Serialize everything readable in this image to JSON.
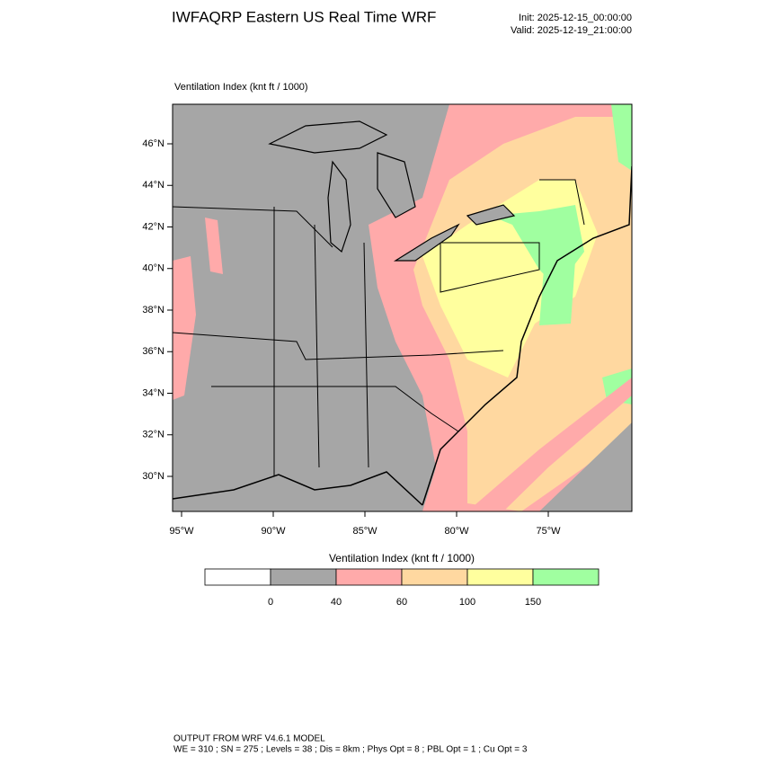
{
  "header": {
    "title": "IWFAQRP Eastern US Real Time WRF",
    "init": "Init: 2025-12-15_00:00:00",
    "valid": "Valid: 2025-12-19_21:00:00"
  },
  "map": {
    "field_label": "Ventilation Index   (knt ft / 1000)",
    "lat_labels": [
      "46°N",
      "44°N",
      "42°N",
      "40°N",
      "38°N",
      "36°N",
      "34°N",
      "32°N",
      "30°N"
    ],
    "lon_labels": [
      "95°W",
      "90°W",
      "85°W",
      "80°W",
      "75°W"
    ]
  },
  "colorbar": {
    "title": "Ventilation Index  (knt ft / 1000)",
    "levels": [
      0,
      40,
      60,
      100,
      150
    ],
    "colors": [
      "#ffffff",
      "#a6a6a6",
      "#ffaaaa",
      "#ffd8a0",
      "#ffff9e",
      "#a0ffa0"
    ]
  },
  "footer": {
    "line1": "OUTPUT FROM WRF V4.6.1 MODEL",
    "line2": "WE = 310 ; SN = 275 ; Levels = 38 ; Dis = 8km ; Phys Opt = 8 ; PBL Opt = 1 ; Cu Opt = 3"
  }
}
